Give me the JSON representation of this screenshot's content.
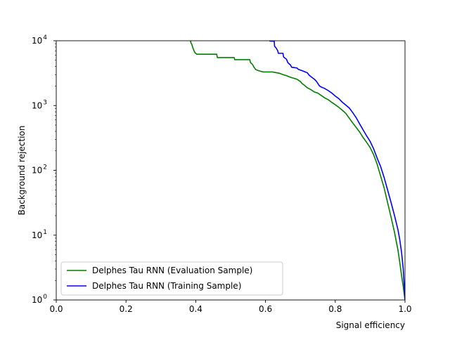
{
  "chart_data": {
    "type": "line",
    "xlabel": "Signal efficiency",
    "ylabel": "Background rejection",
    "xlim": [
      0.0,
      1.0
    ],
    "ylim": [
      1,
      10000
    ],
    "yscale": "log",
    "grid": false,
    "legend_position": "lower-left",
    "x_ticks": [
      {
        "value": 0.0,
        "label": "0.0"
      },
      {
        "value": 0.2,
        "label": "0.2"
      },
      {
        "value": 0.4,
        "label": "0.4"
      },
      {
        "value": 0.6,
        "label": "0.6"
      },
      {
        "value": 0.8,
        "label": "0.8"
      },
      {
        "value": 1.0,
        "label": "1.0"
      }
    ],
    "y_ticks": [
      {
        "value": 1,
        "base": "10",
        "exp": "0"
      },
      {
        "value": 10,
        "base": "10",
        "exp": "1"
      },
      {
        "value": 100,
        "base": "10",
        "exp": "2"
      },
      {
        "value": 1000,
        "base": "10",
        "exp": "3"
      },
      {
        "value": 10000,
        "base": "10",
        "exp": "4"
      }
    ],
    "series": [
      {
        "name": "Delphes Tau RNN (Evaluation Sample)",
        "color": "#008000",
        "points": [
          [
            0.385,
            10000
          ],
          [
            0.386,
            9300
          ],
          [
            0.389,
            8700
          ],
          [
            0.392,
            7700
          ],
          [
            0.395,
            7000
          ],
          [
            0.398,
            6500
          ],
          [
            0.403,
            6200
          ],
          [
            0.46,
            6200
          ],
          [
            0.462,
            5500
          ],
          [
            0.51,
            5500
          ],
          [
            0.512,
            5100
          ],
          [
            0.555,
            5100
          ],
          [
            0.557,
            4600
          ],
          [
            0.563,
            4300
          ],
          [
            0.567,
            3900
          ],
          [
            0.572,
            3600
          ],
          [
            0.58,
            3450
          ],
          [
            0.593,
            3300
          ],
          [
            0.62,
            3300
          ],
          [
            0.64,
            3150
          ],
          [
            0.65,
            3000
          ],
          [
            0.66,
            2900
          ],
          [
            0.67,
            2750
          ],
          [
            0.68,
            2650
          ],
          [
            0.69,
            2550
          ],
          [
            0.7,
            2350
          ],
          [
            0.705,
            2180
          ],
          [
            0.712,
            2050
          ],
          [
            0.72,
            1880
          ],
          [
            0.73,
            1760
          ],
          [
            0.74,
            1620
          ],
          [
            0.75,
            1560
          ],
          [
            0.76,
            1430
          ],
          [
            0.77,
            1310
          ],
          [
            0.78,
            1230
          ],
          [
            0.79,
            1120
          ],
          [
            0.8,
            1030
          ],
          [
            0.81,
            940
          ],
          [
            0.82,
            850
          ],
          [
            0.83,
            760
          ],
          [
            0.84,
            640
          ],
          [
            0.85,
            540
          ],
          [
            0.86,
            460
          ],
          [
            0.87,
            390
          ],
          [
            0.88,
            320
          ],
          [
            0.89,
            270
          ],
          [
            0.9,
            225
          ],
          [
            0.91,
            175
          ],
          [
            0.92,
            125
          ],
          [
            0.93,
            82
          ],
          [
            0.94,
            54
          ],
          [
            0.95,
            32
          ],
          [
            0.96,
            19
          ],
          [
            0.97,
            11
          ],
          [
            0.98,
            5.8
          ],
          [
            0.985,
            3.8
          ],
          [
            0.99,
            2.4
          ],
          [
            0.995,
            1.6
          ],
          [
            1.0,
            1.0
          ]
        ]
      },
      {
        "name": "Delphes Tau RNN (Training Sample)",
        "color": "#0000ff",
        "points": [
          [
            0.611,
            10000
          ],
          [
            0.615,
            9850
          ],
          [
            0.625,
            9850
          ],
          [
            0.626,
            8200
          ],
          [
            0.63,
            7800
          ],
          [
            0.635,
            7000
          ],
          [
            0.637,
            6400
          ],
          [
            0.65,
            6400
          ],
          [
            0.652,
            5600
          ],
          [
            0.66,
            5200
          ],
          [
            0.664,
            4600
          ],
          [
            0.672,
            4200
          ],
          [
            0.675,
            3900
          ],
          [
            0.69,
            3800
          ],
          [
            0.695,
            3600
          ],
          [
            0.705,
            3450
          ],
          [
            0.72,
            3200
          ],
          [
            0.725,
            2950
          ],
          [
            0.73,
            2800
          ],
          [
            0.74,
            2550
          ],
          [
            0.745,
            2400
          ],
          [
            0.75,
            2200
          ],
          [
            0.755,
            2000
          ],
          [
            0.76,
            1930
          ],
          [
            0.77,
            1830
          ],
          [
            0.78,
            1700
          ],
          [
            0.79,
            1560
          ],
          [
            0.8,
            1400
          ],
          [
            0.81,
            1280
          ],
          [
            0.82,
            1130
          ],
          [
            0.83,
            1020
          ],
          [
            0.84,
            920
          ],
          [
            0.85,
            780
          ],
          [
            0.86,
            650
          ],
          [
            0.87,
            520
          ],
          [
            0.88,
            420
          ],
          [
            0.89,
            340
          ],
          [
            0.9,
            280
          ],
          [
            0.91,
            215
          ],
          [
            0.92,
            155
          ],
          [
            0.93,
            115
          ],
          [
            0.94,
            78
          ],
          [
            0.95,
            50
          ],
          [
            0.96,
            32
          ],
          [
            0.97,
            20
          ],
          [
            0.98,
            12
          ],
          [
            0.985,
            8.5
          ],
          [
            0.99,
            5.5
          ],
          [
            0.995,
            3.0
          ],
          [
            1.0,
            1.0
          ]
        ]
      }
    ]
  }
}
